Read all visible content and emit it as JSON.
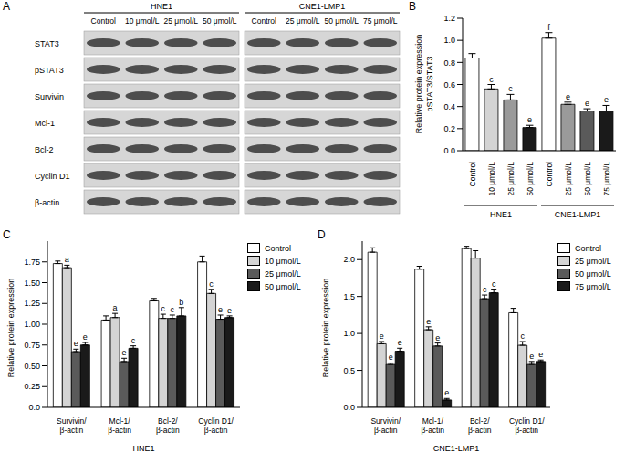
{
  "blot": {
    "panel": "A",
    "groups": [
      {
        "name": "HNE1",
        "lanes": [
          "Control",
          "10 μmol/L",
          "25 μmol/L",
          "50 μmol/L"
        ]
      },
      {
        "name": "CNE1-LMP1",
        "lanes": [
          "Control",
          "25 μmol/L",
          "50 μmol/L",
          "75 μmol/L"
        ]
      }
    ],
    "proteins": [
      "STAT3",
      "pSTAT3",
      "Survivin",
      "Mcl-1",
      "Bcl-2",
      "Cyclin D1",
      "β-actin"
    ]
  },
  "chart_data": [
    {
      "panel": "B",
      "type": "bar",
      "ylabel": "Relative protein expression",
      "ylabel_inner": "pSTAT3/STAT3",
      "ylim": [
        0,
        1.2
      ],
      "yticks": [
        {
          "value": 0,
          "label": "0.0"
        },
        0.2,
        0.4,
        0.6,
        0.8,
        {
          "value": 1,
          "label": "1.0"
        },
        1.2
      ],
      "groups": [
        {
          "name": "HNE1",
          "categories": [
            "Control",
            "10 μmol/L",
            "25 μmol/L",
            "50 μmol/L"
          ],
          "values": [
            0.84,
            0.56,
            0.46,
            0.21
          ],
          "errors": [
            0.04,
            0.04,
            0.05,
            0.02
          ],
          "annotations": [
            null,
            "c",
            "c",
            "e"
          ],
          "colors": [
            "#ffffff",
            "#d4d4d4",
            "#9a9a9a",
            "#1a1a1a"
          ]
        },
        {
          "name": "CNE1-LMP1",
          "categories": [
            "Control",
            "25 μmol/L",
            "50 μmol/L",
            "75 μmol/L"
          ],
          "values": [
            1.02,
            0.42,
            0.36,
            0.36
          ],
          "errors": [
            0.05,
            0.02,
            0.02,
            0.05
          ],
          "annotations": [
            "f",
            "e",
            "e",
            "e"
          ],
          "colors": [
            "#ffffff",
            "#9a9a9a",
            "#5a5a5a",
            "#1a1a1a"
          ]
        }
      ]
    },
    {
      "panel": "C",
      "type": "bar",
      "ylabel": "Relative protein expression",
      "xlabel": "HNE1",
      "legend": "right",
      "ylim": [
        0,
        2
      ],
      "yticks": [
        {
          "value": 0,
          "label": "0.0"
        },
        0.25,
        {
          "value": 0.5,
          "label": "0.50"
        },
        0.75,
        {
          "value": 1,
          "label": "1.00"
        },
        1.25,
        {
          "value": 1.5,
          "label": "1.50"
        },
        1.75
      ],
      "categories": [
        "Survivin/\nβ-actin",
        "Mcl-1/\nβ-actin",
        "Bcl-2/\nβ-actin",
        "Cyclin D1/\nβ-actin"
      ],
      "series": [
        {
          "name": "Control",
          "color": "#ffffff",
          "values": [
            1.73,
            1.05,
            1.28,
            1.75
          ],
          "errors": [
            0.03,
            0.05,
            0.03,
            0.07
          ],
          "annotations": [
            null,
            null,
            null,
            null
          ]
        },
        {
          "name": "10 μmol/L",
          "color": "#d4d4d4",
          "values": [
            1.68,
            1.08,
            1.07,
            1.37
          ],
          "errors": [
            0.03,
            0.05,
            0.05,
            0.05
          ],
          "annotations": [
            "a",
            "a",
            "c",
            "c"
          ]
        },
        {
          "name": "25 μmol/L",
          "color": "#5a5a5a",
          "values": [
            0.67,
            0.55,
            1.07,
            1.06
          ],
          "errors": [
            0.03,
            0.04,
            0.04,
            0.05
          ],
          "annotations": [
            "e",
            "e",
            "c",
            "e"
          ]
        },
        {
          "name": "50 μmol/L",
          "color": "#1a1a1a",
          "values": [
            0.75,
            0.71,
            1.1,
            1.08
          ],
          "errors": [
            0.03,
            0.03,
            0.1,
            0.02
          ],
          "annotations": [
            "e",
            "c",
            "b",
            "e"
          ]
        }
      ]
    },
    {
      "panel": "D",
      "type": "bar",
      "ylabel": "Relative protein expression",
      "xlabel": "CNE1-LMP1",
      "legend": "right",
      "ylim": [
        0,
        2.25
      ],
      "yticks": [
        {
          "value": 0,
          "label": "0.0"
        },
        0.5,
        {
          "value": 1,
          "label": "1.0"
        },
        1.5,
        {
          "value": 2,
          "label": "2.0"
        }
      ],
      "categories": [
        "Survivin/\nβ-actin",
        "Mcl-1/\nβ-actin",
        "Bcl-2/\nβ-actin",
        "Cyclin D1/\nβ-actin"
      ],
      "series": [
        {
          "name": "Control",
          "color": "#ffffff",
          "values": [
            2.1,
            1.87,
            2.15,
            1.28
          ],
          "errors": [
            0.06,
            0.04,
            0.03,
            0.06
          ],
          "annotations": [
            null,
            null,
            null,
            null
          ]
        },
        {
          "name": "25 μmol/L",
          "color": "#d4d4d4",
          "values": [
            0.86,
            1.05,
            2.02,
            0.84
          ],
          "errors": [
            0.03,
            0.04,
            0.1,
            0.05
          ],
          "annotations": [
            "e",
            "e",
            null,
            "c"
          ]
        },
        {
          "name": "50 μmol/L",
          "color": "#5a5a5a",
          "values": [
            0.58,
            0.83,
            1.47,
            0.58
          ],
          "errors": [
            0.02,
            0.04,
            0.05,
            0.04
          ],
          "annotations": [
            "e",
            "e",
            "c",
            "e"
          ]
        },
        {
          "name": "75 μmol/L",
          "color": "#1a1a1a",
          "values": [
            0.76,
            0.1,
            1.55,
            0.62
          ],
          "errors": [
            0.04,
            0.02,
            0.05,
            0.02
          ],
          "annotations": [
            "e",
            "e",
            "c",
            "e"
          ]
        }
      ]
    }
  ]
}
